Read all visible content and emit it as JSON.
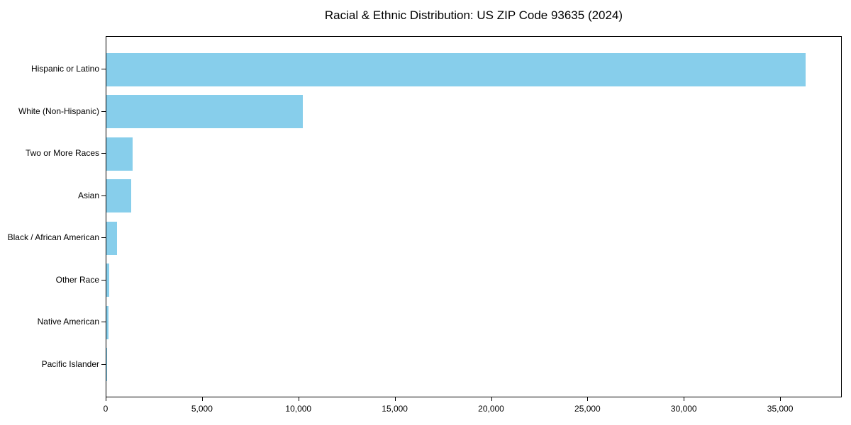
{
  "page": {
    "background_color": "#ffffff",
    "text_color": "#000000"
  },
  "chart_data": {
    "type": "bar",
    "orientation": "horizontal",
    "title": "Racial & Ethnic Distribution: US ZIP Code 93635 (2024)",
    "categories": [
      "Hispanic or Latino",
      "White (Non-Hispanic)",
      "Two or More Races",
      "Asian",
      "Black / African American",
      "Other Race",
      "Native American",
      "Pacific Islander"
    ],
    "values": [
      36300,
      10200,
      1370,
      1290,
      550,
      135,
      100,
      30
    ],
    "xlabel": "",
    "ylabel": "",
    "xlim": [
      0,
      38160
    ],
    "xticks": [
      0,
      5000,
      10000,
      15000,
      20000,
      25000,
      30000,
      35000
    ],
    "xtick_labels": [
      "0",
      "5,000",
      "10,000",
      "15,000",
      "20,000",
      "25,000",
      "30,000",
      "35,000"
    ],
    "bar_color": "#87CEEB",
    "axis_color": "#000000",
    "grid": false,
    "legend_position": "none"
  }
}
